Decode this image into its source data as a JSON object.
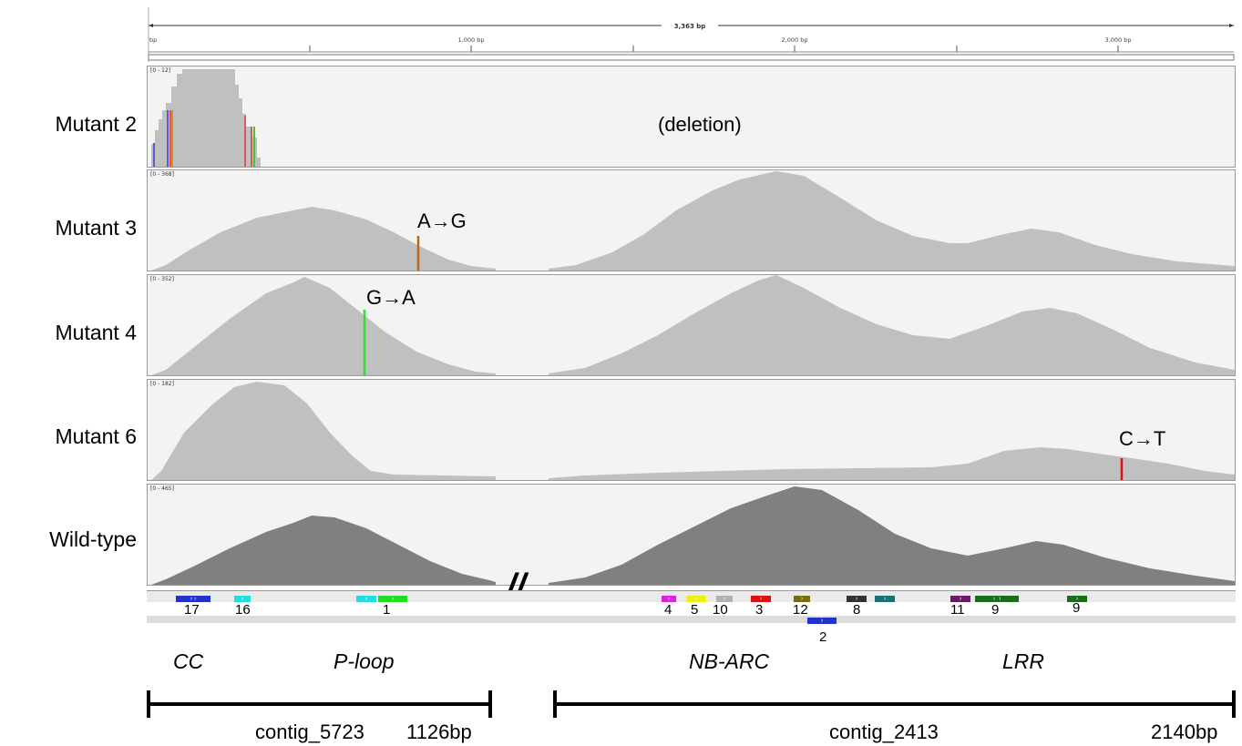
{
  "ruler": {
    "total": "3,363 bp",
    "start": "bp",
    "ticks": [
      "1,000 bp",
      "2,000 bp",
      "3,000 bp"
    ]
  },
  "tracks": [
    {
      "label": "Mutant 2",
      "range": "[0 - 12]",
      "note": "(deletion)"
    },
    {
      "label": "Mutant 3",
      "range": "[0 - 368]",
      "mutation": "A→G"
    },
    {
      "label": "Mutant 4",
      "range": "[0 - 352]",
      "mutation": "G→A"
    },
    {
      "label": "Mutant 6",
      "range": "[0 - 182]",
      "mutation": "C→T"
    },
    {
      "label": "Wild-type",
      "range": "[0 - 465]"
    }
  ],
  "features": [
    "17",
    "16",
    "1",
    "4",
    "5",
    "10",
    "3",
    "12",
    "8",
    "11",
    "9",
    "9",
    "2"
  ],
  "domains": [
    "CC",
    "P-loop",
    "NB-ARC",
    "LRR"
  ],
  "contigs": {
    "left_name": "contig_5723",
    "left_len": "1126bp",
    "right_name": "contig_2413",
    "right_len": "2140bp"
  },
  "break_mark": "//",
  "colors": {
    "coverage": "#c0c0c0",
    "wildtype": "#808080",
    "a_g": "#b8691a",
    "g_a": "#33dd33",
    "c_t": "#dd1111"
  }
}
